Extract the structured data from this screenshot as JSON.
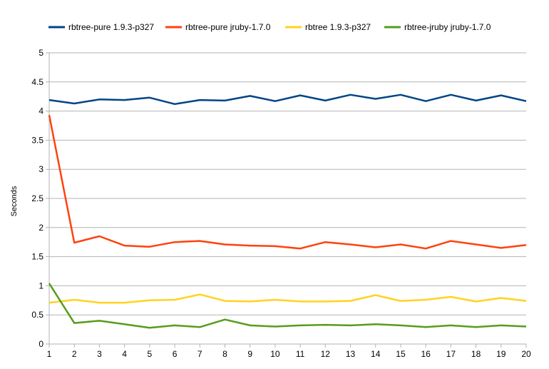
{
  "chart_data": {
    "type": "line",
    "title": "",
    "xlabel": "",
    "ylabel": "Seconds",
    "x": [
      1,
      2,
      3,
      4,
      5,
      6,
      7,
      8,
      9,
      10,
      11,
      12,
      13,
      14,
      15,
      16,
      17,
      18,
      19,
      20
    ],
    "xlim": [
      1,
      20
    ],
    "ylim": [
      0,
      5
    ],
    "yticks": [
      "0",
      "0.5",
      "1",
      "1.5",
      "2",
      "2.5",
      "3",
      "3.5",
      "4",
      "4.5",
      "5"
    ],
    "grid": "horizontal",
    "legend_position": "top",
    "series": [
      {
        "name": "rbtree-pure 1.9.3-p327",
        "color": "#004586",
        "values": [
          4.19,
          4.13,
          4.2,
          4.19,
          4.23,
          4.12,
          4.19,
          4.18,
          4.26,
          4.17,
          4.27,
          4.18,
          4.28,
          4.21,
          4.28,
          4.17,
          4.28,
          4.18,
          4.27,
          4.17
        ]
      },
      {
        "name": "rbtree-pure jruby-1.7.0",
        "color": "#ff420e",
        "values": [
          3.93,
          1.74,
          1.85,
          1.69,
          1.67,
          1.75,
          1.77,
          1.71,
          1.69,
          1.68,
          1.64,
          1.75,
          1.71,
          1.66,
          1.71,
          1.64,
          1.77,
          1.71,
          1.65,
          1.7
        ]
      },
      {
        "name": "rbtree 1.9.3-p327",
        "color": "#ffd320",
        "values": [
          0.71,
          0.76,
          0.71,
          0.71,
          0.75,
          0.76,
          0.85,
          0.74,
          0.73,
          0.76,
          0.73,
          0.73,
          0.74,
          0.84,
          0.74,
          0.76,
          0.81,
          0.73,
          0.79,
          0.74
        ]
      },
      {
        "name": "rbtree-jruby jruby-1.7.0",
        "color": "#579d1c",
        "values": [
          1.04,
          0.36,
          0.4,
          0.34,
          0.28,
          0.32,
          0.29,
          0.42,
          0.32,
          0.3,
          0.32,
          0.33,
          0.32,
          0.34,
          0.32,
          0.29,
          0.32,
          0.29,
          0.32,
          0.3
        ]
      }
    ]
  }
}
